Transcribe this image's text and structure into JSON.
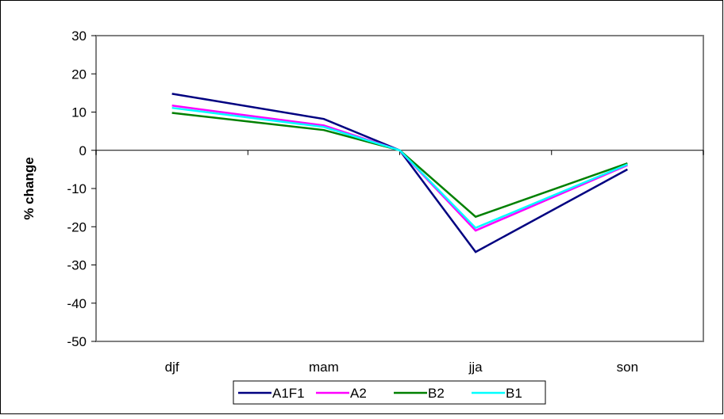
{
  "chart_data": {
    "type": "line",
    "title": "",
    "xlabel": "",
    "ylabel": "% change",
    "ylim": [
      -50,
      30
    ],
    "ytick_step": 10,
    "grid": false,
    "legend_position": "bottom",
    "categories": [
      "djf",
      "mam",
      "jja",
      "son"
    ],
    "zero_crossing_at": 1.5,
    "series": [
      {
        "name": "A1F1",
        "color": "#000080",
        "values": [
          14.8,
          8.2,
          -26.6,
          -5.0
        ]
      },
      {
        "name": "A2",
        "color": "#ff00ff",
        "values": [
          11.7,
          6.5,
          -21.0,
          -3.9
        ]
      },
      {
        "name": "B2",
        "color": "#008000",
        "values": [
          9.8,
          5.3,
          -17.4,
          -3.4
        ]
      },
      {
        "name": "B1",
        "color": "#00ffff",
        "values": [
          11.1,
          6.1,
          -20.3,
          -3.7
        ]
      }
    ]
  }
}
